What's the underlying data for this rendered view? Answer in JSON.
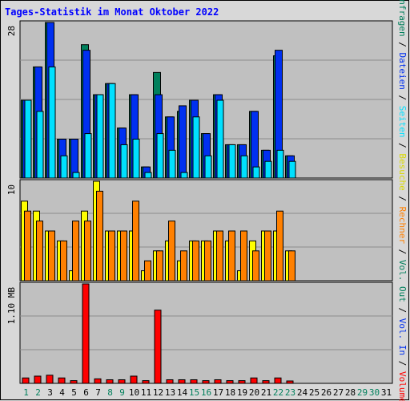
{
  "chart_data": {
    "type": "bar",
    "title": "Tages-Statistik im Monat Oktober 2022",
    "categories": [
      "1",
      "2",
      "3",
      "4",
      "5",
      "6",
      "7",
      "8",
      "9",
      "10",
      "11",
      "12",
      "13",
      "14",
      "15",
      "16",
      "17",
      "18",
      "19",
      "20",
      "21",
      "22",
      "23",
      "24",
      "25",
      "26",
      "27",
      "28",
      "29",
      "30",
      "31"
    ],
    "weekend_days": [
      "1",
      "2",
      "8",
      "9",
      "15",
      "16",
      "22",
      "23",
      "29",
      "30"
    ],
    "panels": [
      {
        "id": "requests",
        "scale_label": "28",
        "ylim": [
          0,
          28
        ],
        "series": [
          {
            "name": "Anfragen",
            "color": "#00805c",
            "values": [
              14,
              20,
              28,
              7,
              7,
              24,
              15,
              17,
              9,
              15,
              2,
              19,
              11,
              12,
              14,
              8,
              15,
              6,
              6,
              12,
              5,
              22,
              4,
              0,
              0,
              0,
              0,
              0,
              0,
              0,
              0
            ]
          },
          {
            "name": "Dateien",
            "color": "#0030f0",
            "values": [
              14,
              20,
              28,
              7,
              7,
              23,
              15,
              17,
              9,
              15,
              2,
              15,
              11,
              13,
              14,
              8,
              15,
              6,
              6,
              12,
              5,
              23,
              4,
              0,
              0,
              0,
              0,
              0,
              0,
              0,
              0
            ]
          },
          {
            "name": "Seiten",
            "color": "#00e0ff",
            "values": [
              14,
              12,
              20,
              4,
              1,
              8,
              15,
              17,
              6,
              7,
              1,
              8,
              5,
              1,
              11,
              4,
              14,
              6,
              4,
              2,
              3,
              5,
              3,
              0,
              0,
              0,
              0,
              0,
              0,
              0,
              0
            ]
          }
        ]
      },
      {
        "id": "visits",
        "scale_label": "10",
        "ylim": [
          0,
          10
        ],
        "series": [
          {
            "name": "Besuche",
            "color": "#ffff00",
            "values": [
              8,
              7,
              5,
              4,
              1,
              7,
              10,
              5,
              5,
              5,
              1,
              3,
              4,
              2,
              4,
              4,
              5,
              4,
              1,
              4,
              5,
              5,
              3,
              0,
              0,
              0,
              0,
              0,
              0,
              0,
              0
            ]
          },
          {
            "name": "Rechner",
            "color": "#ff8000",
            "values": [
              7,
              6,
              5,
              4,
              6,
              6,
              9,
              5,
              5,
              8,
              2,
              3,
              6,
              3,
              4,
              4,
              5,
              5,
              5,
              3,
              5,
              7,
              3,
              0,
              0,
              0,
              0,
              0,
              0,
              0,
              0
            ]
          }
        ]
      },
      {
        "id": "volume",
        "scale_label": "1.10 MB",
        "ylim": [
          0,
          1.1
        ],
        "series": [
          {
            "name": "Volumen",
            "color": "#ff0000",
            "values": [
              0.06,
              0.08,
              0.09,
              0.06,
              0.03,
              1.1,
              0.05,
              0.04,
              0.04,
              0.08,
              0.03,
              0.81,
              0.04,
              0.04,
              0.04,
              0.03,
              0.04,
              0.03,
              0.03,
              0.06,
              0.03,
              0.06,
              0.02,
              0,
              0,
              0,
              0,
              0,
              0,
              0,
              0
            ]
          }
        ]
      }
    ],
    "legend_right": [
      {
        "text": "Anfragen",
        "color": "#00805c"
      },
      {
        "text": "Dateien",
        "color": "#0030f0"
      },
      {
        "text": "Seiten",
        "color": "#00e0ff"
      },
      {
        "text": "Besuche",
        "color": "#d8d800"
      },
      {
        "text": "Rechner",
        "color": "#ff8000"
      },
      {
        "text": "Vol. Out",
        "color": "#00805c"
      },
      {
        "text": "Vol. In",
        "color": "#0030f0"
      },
      {
        "text": "Volumen",
        "color": "#ff0000"
      }
    ],
    "legend_separator": " / ",
    "colors": {
      "plot_bg": "#c0c0c0",
      "frame_bg": "#d8d8d8",
      "title": "#0000ff",
      "weekend_label": "#00805c",
      "weekday_label": "#000000"
    }
  }
}
